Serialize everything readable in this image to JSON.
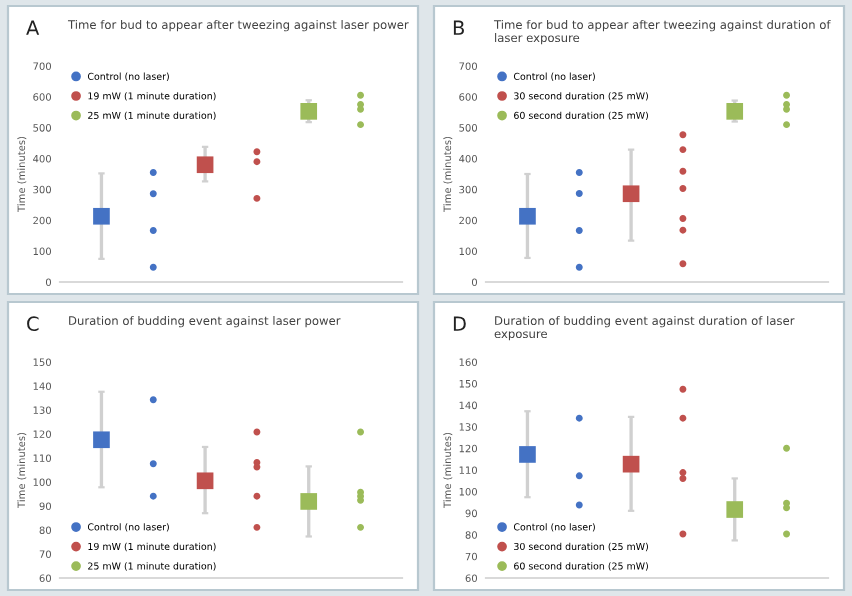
{
  "chart_data": [
    {
      "type": "scatter",
      "title": "Time for bud to appear after tweezing against laser power",
      "ylabel": "Time (minutes)",
      "annotations": [
        "A"
      ],
      "categories": [
        null,
        null,
        null,
        null,
        null,
        null
      ],
      "ylim": [
        0,
        700
      ],
      "yticks": [
        0,
        100,
        200,
        300,
        400,
        500,
        600,
        700
      ],
      "legend": "top left",
      "tick_labels": "y",
      "series": [
        {
          "name": "Control (no laser)",
          "color": "#4472c4",
          "marker": "square",
          "values": [
            213,
            null,
            null,
            null,
            null,
            null
          ],
          "errors": [
            [
              75,
              352
            ],
            null,
            null,
            null,
            null,
            null
          ]
        },
        {
          "name": "19 mW (1 minute duration)",
          "color": "#c0504d",
          "marker": "square",
          "values": [
            null,
            null,
            380,
            null,
            null,
            null
          ],
          "errors": [
            null,
            null,
            [
              326,
              438
            ],
            null,
            null,
            null
          ]
        },
        {
          "name": "25 mW (1 minute duration)",
          "color": "#9bbb59",
          "marker": "square",
          "values": [
            null,
            null,
            null,
            null,
            553,
            null
          ],
          "errors": [
            null,
            null,
            null,
            null,
            [
              518,
              589
            ],
            null
          ]
        },
        {
          "marker": "circle",
          "colors": [
            "#4472c4",
            "#4472c4",
            "#c0504d",
            "#c0504d",
            "#9bbb59",
            "#9bbb59"
          ],
          "values": [
            null,
            355,
            null,
            422,
            null,
            605
          ]
        },
        {
          "marker": "circle",
          "colors": [
            "#4472c4",
            "#4472c4",
            "#c0504d",
            "#c0504d",
            "#9bbb59",
            "#9bbb59"
          ],
          "values": [
            null,
            286,
            null,
            390,
            null,
            575
          ]
        },
        {
          "marker": "circle",
          "colors": [
            "#4472c4",
            "#4472c4",
            "#c0504d",
            "#c0504d",
            "#9bbb59",
            "#9bbb59"
          ],
          "values": [
            null,
            167,
            null,
            271,
            null,
            560
          ]
        },
        {
          "marker": "circle",
          "colors": [
            "#4472c4",
            "#4472c4",
            "#c0504d",
            "#c0504d",
            "#9bbb59",
            "#9bbb59"
          ],
          "values": [
            null,
            48,
            null,
            null,
            null,
            510
          ]
        }
      ]
    },
    {
      "type": "scatter",
      "title": "Time for bud to appear after tweezing against duration of laser exposure",
      "ylabel": "Time (minutes)",
      "annotations": [
        "B"
      ],
      "categories": [
        null,
        null,
        null,
        null,
        null,
        null
      ],
      "ylim": [
        0,
        700
      ],
      "yticks": [
        0,
        100,
        200,
        300,
        400,
        500,
        600,
        700
      ],
      "legend": "top left",
      "tick_labels": "y",
      "series": [
        {
          "name": "Control (no laser)",
          "color": "#4472c4",
          "marker": "square",
          "values": [
            213,
            null,
            null,
            null,
            null,
            null
          ],
          "errors": [
            [
              78,
              350
            ],
            null,
            null,
            null,
            null,
            null
          ]
        },
        {
          "name": "30 second duration (25 mW)",
          "color": "#c0504d",
          "marker": "square",
          "values": [
            null,
            null,
            286,
            null,
            null,
            null
          ],
          "errors": [
            null,
            null,
            [
              134,
              429
            ],
            null,
            null,
            null
          ]
        },
        {
          "name": "60 second duration (25 mW)",
          "color": "#9bbb59",
          "marker": "square",
          "values": [
            null,
            null,
            null,
            null,
            553,
            null
          ],
          "errors": [
            null,
            null,
            null,
            null,
            [
              520,
              588
            ],
            null
          ]
        },
        {
          "marker": "circle",
          "colors": [
            "#4472c4",
            "#4472c4",
            "#c0504d",
            "#c0504d",
            "#9bbb59",
            "#9bbb59"
          ],
          "values": [
            null,
            355,
            null,
            477,
            null,
            605
          ]
        },
        {
          "marker": "circle",
          "colors": [
            "#4472c4",
            "#4472c4",
            "#c0504d",
            "#c0504d",
            "#9bbb59",
            "#9bbb59"
          ],
          "values": [
            null,
            287,
            null,
            429,
            null,
            575
          ]
        },
        {
          "marker": "circle",
          "colors": [
            "#4472c4",
            "#4472c4",
            "#c0504d",
            "#c0504d",
            "#9bbb59",
            "#9bbb59"
          ],
          "values": [
            null,
            167,
            null,
            359,
            null,
            560
          ]
        },
        {
          "marker": "circle",
          "colors": [
            "#4472c4",
            "#4472c4",
            "#c0504d",
            "#c0504d",
            "#9bbb59",
            "#9bbb59"
          ],
          "values": [
            null,
            48,
            null,
            303,
            null,
            510
          ]
        },
        {
          "marker": "circle",
          "colors": [
            "#4472c4",
            "#4472c4",
            "#c0504d",
            "#c0504d",
            "#9bbb59",
            "#9bbb59"
          ],
          "values": [
            null,
            null,
            null,
            206,
            null,
            null
          ]
        },
        {
          "marker": "circle",
          "colors": [
            "#4472c4",
            "#4472c4",
            "#c0504d",
            "#c0504d",
            "#9bbb59",
            "#9bbb59"
          ],
          "values": [
            null,
            null,
            null,
            168,
            null,
            null
          ]
        },
        {
          "marker": "circle",
          "colors": [
            "#4472c4",
            "#4472c4",
            "#c0504d",
            "#c0504d",
            "#9bbb59",
            "#9bbb59"
          ],
          "values": [
            null,
            null,
            null,
            59,
            null,
            null
          ]
        }
      ]
    },
    {
      "type": "scatter",
      "title": "Duration of budding event against laser power",
      "ylabel": "Time (minutes)",
      "annotations": [
        "C"
      ],
      "categories": [
        null,
        null,
        null,
        null,
        null,
        null
      ],
      "ylim": [
        60,
        150
      ],
      "yticks": [
        60,
        70,
        80,
        90,
        100,
        110,
        120,
        130,
        140,
        150
      ],
      "legend": "bottom left",
      "tick_labels": "y",
      "series": [
        {
          "name": "Control (no laser)",
          "color": "#4472c4",
          "marker": "square",
          "values": [
            117.6,
            null,
            null,
            null,
            null,
            null
          ],
          "errors": [
            [
              97.8,
              137.6
            ],
            null,
            null,
            null,
            null,
            null
          ]
        },
        {
          "name": "19 mW (1 minute duration)",
          "color": "#c0504d",
          "marker": "square",
          "values": [
            null,
            null,
            100.5,
            null,
            null,
            null
          ],
          "errors": [
            null,
            null,
            [
              87,
              114.6
            ],
            null,
            null,
            null
          ]
        },
        {
          "name": "25 mW (1 minute duration)",
          "color": "#9bbb59",
          "marker": "square",
          "values": [
            null,
            null,
            null,
            null,
            91.9,
            null
          ],
          "errors": [
            null,
            null,
            null,
            null,
            [
              77.3,
              106.5
            ],
            null
          ]
        },
        {
          "marker": "circle",
          "colors": [
            "#4472c4",
            "#4472c4",
            "#c0504d",
            "#c0504d",
            "#9bbb59",
            "#9bbb59"
          ],
          "values": [
            null,
            134.3,
            null,
            120.8,
            null,
            120.8
          ]
        },
        {
          "marker": "circle",
          "colors": [
            "#4472c4",
            "#4472c4",
            "#c0504d",
            "#c0504d",
            "#9bbb59",
            "#9bbb59"
          ],
          "values": [
            null,
            107.6,
            null,
            108.1,
            null,
            95.7
          ]
        },
        {
          "marker": "circle",
          "colors": [
            "#4472c4",
            "#4472c4",
            "#c0504d",
            "#c0504d",
            "#9bbb59",
            "#9bbb59"
          ],
          "values": [
            null,
            94.1,
            null,
            106.2,
            null,
            94.1
          ]
        },
        {
          "marker": "circle",
          "colors": [
            "#4472c4",
            "#4472c4",
            "#c0504d",
            "#c0504d",
            "#9bbb59",
            "#9bbb59"
          ],
          "values": [
            null,
            null,
            null,
            94.1,
            null,
            92.4
          ]
        },
        {
          "marker": "circle",
          "colors": [
            "#4472c4",
            "#4472c4",
            "#c0504d",
            "#c0504d",
            "#9bbb59",
            "#9bbb59"
          ],
          "values": [
            null,
            null,
            null,
            81.1,
            null,
            81.1
          ]
        }
      ]
    },
    {
      "type": "scatter",
      "title": "Duration of budding event against duration of laser exposure",
      "ylabel": "Time (minutes)",
      "annotations": [
        "D"
      ],
      "categories": [
        null,
        null,
        null,
        null,
        null,
        null
      ],
      "ylim": [
        60,
        160
      ],
      "yticks": [
        60,
        70,
        80,
        90,
        100,
        110,
        120,
        130,
        140,
        150,
        160
      ],
      "legend": "bottom left",
      "tick_labels": "y",
      "series": [
        {
          "name": "Control (no laser)",
          "color": "#4472c4",
          "marker": "square",
          "values": [
            117.2,
            null,
            null,
            null,
            null,
            null
          ],
          "errors": [
            [
              97.4,
              137.2
            ],
            null,
            null,
            null,
            null,
            null
          ]
        },
        {
          "name": "30 second duration (25 mW)",
          "color": "#c0504d",
          "marker": "square",
          "values": [
            null,
            null,
            112.7,
            null,
            null,
            null
          ],
          "errors": [
            null,
            null,
            [
              91.1,
              134.6
            ],
            null,
            null,
            null
          ]
        },
        {
          "name": "60 second duration (25 mW)",
          "color": "#9bbb59",
          "marker": "square",
          "values": [
            null,
            null,
            null,
            null,
            91.7,
            null
          ],
          "errors": [
            null,
            null,
            null,
            null,
            [
              77.4,
              106.1
            ],
            null
          ]
        },
        {
          "marker": "circle",
          "colors": [
            "#4472c4",
            "#4472c4",
            "#c0504d",
            "#c0504d",
            "#9bbb59",
            "#9bbb59"
          ],
          "values": [
            null,
            134,
            null,
            147.4,
            null,
            120.1
          ]
        },
        {
          "marker": "circle",
          "colors": [
            "#4472c4",
            "#4472c4",
            "#c0504d",
            "#c0504d",
            "#9bbb59",
            "#9bbb59"
          ],
          "values": [
            null,
            107.3,
            null,
            134,
            null,
            94.6
          ]
        },
        {
          "marker": "circle",
          "colors": [
            "#4472c4",
            "#4472c4",
            "#c0504d",
            "#c0504d",
            "#9bbb59",
            "#9bbb59"
          ],
          "values": [
            null,
            93.8,
            null,
            108.8,
            null,
            92.5
          ]
        },
        {
          "marker": "circle",
          "colors": [
            "#4472c4",
            "#4472c4",
            "#c0504d",
            "#c0504d",
            "#9bbb59",
            "#9bbb59"
          ],
          "values": [
            null,
            null,
            null,
            106.1,
            null,
            80.4
          ]
        },
        {
          "marker": "circle",
          "colors": [
            "#4472c4",
            "#4472c4",
            "#c0504d",
            "#c0504d",
            "#9bbb59",
            "#9bbb59"
          ],
          "values": [
            null,
            null,
            null,
            80.4,
            null,
            null
          ]
        }
      ]
    }
  ]
}
